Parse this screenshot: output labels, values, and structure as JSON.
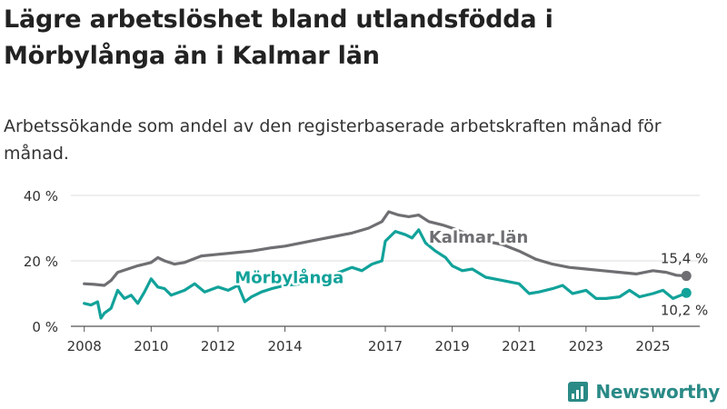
{
  "title": "Lägre arbetslöshet bland utlandsfödda i Mörbylånga än i Kalmar län",
  "subtitle": "Arbetssökande som andel av den registerbaserade arbetskraften månad för månad.",
  "brand": "Newsworthy",
  "colors": {
    "kalmar": "#6f6e72",
    "morbylanga": "#12a29a",
    "grid": "#dddddd",
    "axis": "#555555"
  },
  "chart_data": {
    "type": "line",
    "ylim": [
      0,
      40
    ],
    "xlim": [
      2007.6,
      2026.4
    ],
    "ytick_values": [
      0,
      20,
      40
    ],
    "ytick_labels": [
      "0 %",
      "20 %",
      "40 %"
    ],
    "xtick_values": [
      2008,
      2010,
      2012,
      2014,
      2017,
      2019,
      2021,
      2023,
      2025
    ],
    "xtick_labels": [
      "2008",
      "2010",
      "2012",
      "2014",
      "2017",
      "2019",
      "2021",
      "2023",
      "2025"
    ],
    "series": [
      {
        "name": "Kalmar län",
        "label": "Kalmar län",
        "end_label": "15,4 %",
        "x": [
          2008.0,
          2008.3,
          2008.6,
          2008.8,
          2009.0,
          2009.3,
          2009.6,
          2010.0,
          2010.2,
          2010.4,
          2010.7,
          2011.0,
          2011.5,
          2012.0,
          2012.5,
          2013.0,
          2013.3,
          2013.6,
          2014.0,
          2014.5,
          2015.0,
          2015.5,
          2016.0,
          2016.5,
          2016.9,
          2017.1,
          2017.4,
          2017.7,
          2018.0,
          2018.3,
          2018.7,
          2019.0,
          2019.5,
          2020.0,
          2020.5,
          2021.0,
          2021.5,
          2022.0,
          2022.5,
          2023.0,
          2023.5,
          2024.0,
          2024.5,
          2025.0,
          2025.4,
          2025.7,
          2026.0
        ],
        "values": [
          13.0,
          12.8,
          12.5,
          14.0,
          16.5,
          17.5,
          18.5,
          19.5,
          21.0,
          20.0,
          19.0,
          19.5,
          21.5,
          22.0,
          22.5,
          23.0,
          23.5,
          24.0,
          24.5,
          25.5,
          26.5,
          27.5,
          28.5,
          30.0,
          32.0,
          35.0,
          34.0,
          33.5,
          34.0,
          32.0,
          31.0,
          30.0,
          28.0,
          26.0,
          25.0,
          23.0,
          20.5,
          19.0,
          18.0,
          17.5,
          17.0,
          16.5,
          16.0,
          17.0,
          16.5,
          15.6,
          15.4
        ]
      },
      {
        "name": "Mörbylånga",
        "label": "Mörbylånga",
        "end_label": "10,2 %",
        "x": [
          2008.0,
          2008.2,
          2008.4,
          2008.5,
          2008.6,
          2008.8,
          2009.0,
          2009.2,
          2009.4,
          2009.6,
          2009.8,
          2010.0,
          2010.2,
          2010.4,
          2010.6,
          2011.0,
          2011.3,
          2011.6,
          2012.0,
          2012.3,
          2012.6,
          2012.8,
          2013.0,
          2013.3,
          2013.6,
          2014.0,
          2014.5,
          2015.0,
          2015.5,
          2016.0,
          2016.3,
          2016.6,
          2016.9,
          2017.0,
          2017.3,
          2017.6,
          2017.8,
          2018.0,
          2018.2,
          2018.5,
          2018.8,
          2019.0,
          2019.3,
          2019.6,
          2020.0,
          2020.5,
          2021.0,
          2021.3,
          2021.6,
          2022.0,
          2022.3,
          2022.6,
          2023.0,
          2023.3,
          2023.6,
          2024.0,
          2024.3,
          2024.6,
          2025.0,
          2025.3,
          2025.6,
          2026.0
        ],
        "values": [
          7.0,
          6.5,
          7.5,
          2.5,
          4.0,
          5.5,
          11.0,
          8.5,
          9.5,
          7.0,
          10.5,
          14.5,
          12.0,
          11.5,
          9.5,
          11.0,
          13.0,
          10.5,
          12.0,
          11.0,
          12.5,
          7.5,
          9.0,
          10.5,
          11.5,
          12.5,
          13.0,
          14.0,
          16.0,
          18.0,
          17.0,
          19.0,
          20.0,
          26.0,
          29.0,
          28.0,
          27.0,
          29.5,
          25.5,
          23.0,
          21.0,
          18.5,
          17.0,
          17.5,
          15.0,
          14.0,
          13.0,
          10.0,
          10.5,
          11.5,
          12.5,
          10.0,
          11.0,
          8.5,
          8.5,
          9.0,
          11.0,
          9.0,
          10.0,
          11.0,
          8.5,
          10.2
        ]
      }
    ]
  }
}
